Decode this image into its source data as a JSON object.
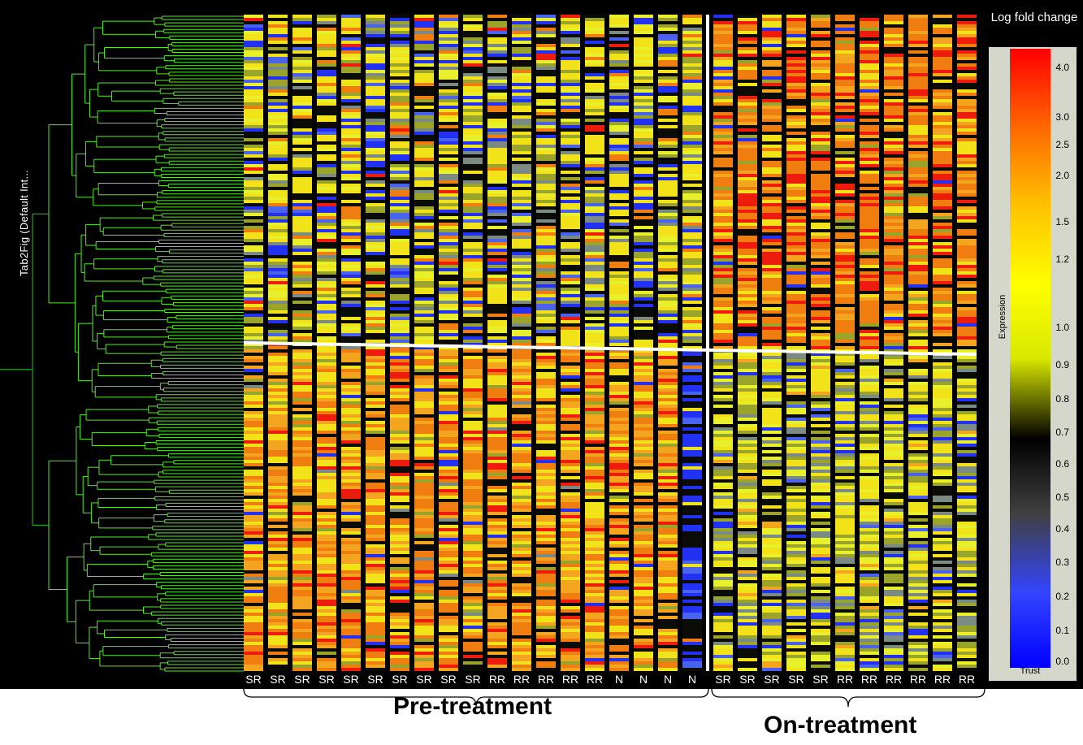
{
  "figure": {
    "tree_label": "Tab2Fig (Default Int...",
    "pre_treatment_label": "Pre-treatment",
    "on_treatment_label": "On-treatment"
  },
  "legend": {
    "title": "Log fold change",
    "sidebar_label": "Expression",
    "footer_label": "Trust",
    "tick_labels": [
      "4.0",
      "3.0",
      "2.5",
      "2.0",
      "1.5",
      "1.2",
      "1.0",
      "0.9",
      "0.8",
      "0.7",
      "0.6",
      "0.5",
      "0.4",
      "0.3",
      "0.2",
      "0.1",
      "0.0"
    ],
    "color_stops": [
      "#ff0000",
      "#ff6a00",
      "#ffc000",
      "#ffff00",
      "#d8e800",
      "#000000",
      "#404040",
      "#3344ff",
      "#0000ff"
    ]
  },
  "chart_data": {
    "type": "heatmap",
    "title": "",
    "colorbar_title": "Log fold change",
    "samples": [
      {
        "label": "SR",
        "group": "Pre-treatment"
      },
      {
        "label": "SR",
        "group": "Pre-treatment"
      },
      {
        "label": "SR",
        "group": "Pre-treatment"
      },
      {
        "label": "SR",
        "group": "Pre-treatment"
      },
      {
        "label": "SR",
        "group": "Pre-treatment"
      },
      {
        "label": "SR",
        "group": "Pre-treatment"
      },
      {
        "label": "SR",
        "group": "Pre-treatment"
      },
      {
        "label": "SR",
        "group": "Pre-treatment"
      },
      {
        "label": "SR",
        "group": "Pre-treatment"
      },
      {
        "label": "SR",
        "group": "Pre-treatment"
      },
      {
        "label": "RR",
        "group": "Pre-treatment"
      },
      {
        "label": "RR",
        "group": "Pre-treatment"
      },
      {
        "label": "RR",
        "group": "Pre-treatment"
      },
      {
        "label": "RR",
        "group": "Pre-treatment"
      },
      {
        "label": "RR",
        "group": "Pre-treatment"
      },
      {
        "label": "N",
        "group": "Pre-treatment"
      },
      {
        "label": "N",
        "group": "Pre-treatment"
      },
      {
        "label": "N",
        "group": "Pre-treatment"
      },
      {
        "label": "N",
        "group": "Pre-treatment"
      },
      {
        "label": "SR",
        "group": "On-treatment"
      },
      {
        "label": "SR",
        "group": "On-treatment"
      },
      {
        "label": "SR",
        "group": "On-treatment"
      },
      {
        "label": "SR",
        "group": "On-treatment"
      },
      {
        "label": "SR",
        "group": "On-treatment"
      },
      {
        "label": "RR",
        "group": "On-treatment"
      },
      {
        "label": "RR",
        "group": "On-treatment"
      },
      {
        "label": "RR",
        "group": "On-treatment"
      },
      {
        "label": "RR",
        "group": "On-treatment"
      },
      {
        "label": "RR",
        "group": "On-treatment"
      },
      {
        "label": "RR",
        "group": "On-treatment"
      }
    ],
    "groups": [
      "Pre-treatment",
      "On-treatment"
    ],
    "gene_clusters": [
      {
        "name": "",
        "pre_treatment_level": "mixed yellow/blue/black",
        "on_treatment_level": "up (orange/red)"
      },
      {
        "name": "",
        "pre_treatment_level": "up (yellow/orange)",
        "on_treatment_level": "down (yellow/green/blue)"
      }
    ],
    "color_scale": {
      "min": 0.0,
      "max": 4.0,
      "ticks": [
        4.0,
        3.0,
        2.5,
        2.0,
        1.5,
        1.2,
        1.0,
        0.9,
        0.8,
        0.7,
        0.6,
        0.5,
        0.4,
        0.3,
        0.2,
        0.1,
        0.0
      ]
    },
    "legend_position": "right",
    "grid": false
  }
}
